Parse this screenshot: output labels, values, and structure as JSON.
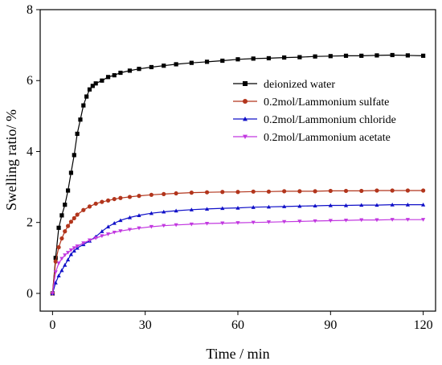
{
  "chart_data": {
    "type": "line",
    "title": "",
    "xlabel": "Time / min",
    "ylabel": "Swelling ratio/ %",
    "xlim": [
      -4,
      124
    ],
    "ylim": [
      -0.5,
      8
    ],
    "xticks": [
      0,
      30,
      60,
      90,
      120
    ],
    "yticks": [
      0,
      2,
      4,
      6,
      8
    ],
    "x_tick_labels": [
      "0",
      "30",
      "60",
      "90",
      "120"
    ],
    "y_tick_labels": [
      "0",
      "2",
      "4",
      "6",
      "8"
    ],
    "grid": false,
    "legend_position": "upper-right",
    "series": [
      {
        "name": "deionized water",
        "color": "#000000",
        "marker": "square",
        "x": [
          0,
          1,
          2,
          3,
          4,
          5,
          6,
          7,
          8,
          9,
          10,
          11,
          12,
          13,
          14,
          16,
          18,
          20,
          22,
          25,
          28,
          32,
          36,
          40,
          45,
          50,
          55,
          60,
          65,
          70,
          75,
          80,
          85,
          90,
          95,
          100,
          105,
          110,
          115,
          120
        ],
        "y": [
          0,
          1.0,
          1.85,
          2.2,
          2.5,
          2.9,
          3.4,
          3.9,
          4.5,
          4.9,
          5.3,
          5.55,
          5.75,
          5.85,
          5.92,
          6.0,
          6.1,
          6.15,
          6.22,
          6.28,
          6.33,
          6.38,
          6.42,
          6.46,
          6.5,
          6.53,
          6.56,
          6.6,
          6.62,
          6.63,
          6.65,
          6.66,
          6.68,
          6.69,
          6.7,
          6.7,
          6.71,
          6.72,
          6.71,
          6.7
        ]
      },
      {
        "name": "0.2mol/Lammonium sulfate",
        "color": "#b2351c",
        "marker": "circle",
        "x": [
          0,
          1,
          2,
          3,
          4,
          5,
          6,
          7,
          8,
          10,
          12,
          14,
          16,
          18,
          20,
          22,
          25,
          28,
          32,
          36,
          40,
          45,
          50,
          55,
          60,
          65,
          70,
          75,
          80,
          85,
          90,
          95,
          100,
          105,
          110,
          115,
          120
        ],
        "y": [
          0,
          0.9,
          1.3,
          1.55,
          1.75,
          1.9,
          2.02,
          2.12,
          2.22,
          2.35,
          2.45,
          2.53,
          2.58,
          2.62,
          2.66,
          2.69,
          2.72,
          2.75,
          2.78,
          2.8,
          2.82,
          2.84,
          2.85,
          2.86,
          2.86,
          2.87,
          2.87,
          2.88,
          2.88,
          2.88,
          2.89,
          2.89,
          2.89,
          2.9,
          2.9,
          2.9,
          2.9
        ]
      },
      {
        "name": "0.2mol/Lammonium chloride",
        "color": "#1010c8",
        "marker": "triangle-up",
        "x": [
          0,
          1,
          2,
          3,
          4,
          5,
          6,
          7,
          8,
          10,
          12,
          14,
          16,
          18,
          20,
          22,
          25,
          28,
          32,
          36,
          40,
          45,
          50,
          55,
          60,
          65,
          70,
          75,
          80,
          85,
          90,
          95,
          100,
          105,
          110,
          115,
          120
        ],
        "y": [
          0,
          0.3,
          0.5,
          0.65,
          0.8,
          0.95,
          1.1,
          1.2,
          1.28,
          1.38,
          1.48,
          1.6,
          1.75,
          1.88,
          1.98,
          2.06,
          2.14,
          2.2,
          2.26,
          2.3,
          2.33,
          2.36,
          2.38,
          2.4,
          2.41,
          2.43,
          2.44,
          2.45,
          2.46,
          2.47,
          2.48,
          2.48,
          2.49,
          2.49,
          2.5,
          2.5,
          2.5
        ]
      },
      {
        "name": "0.2mol/Lammonium acetate",
        "color": "#c238e0",
        "marker": "triangle-down",
        "x": [
          0,
          1,
          2,
          3,
          4,
          5,
          6,
          7,
          8,
          10,
          12,
          14,
          16,
          18,
          20,
          22,
          25,
          28,
          32,
          36,
          40,
          45,
          50,
          55,
          60,
          65,
          70,
          75,
          80,
          85,
          90,
          95,
          100,
          105,
          110,
          115,
          120
        ],
        "y": [
          0,
          0.6,
          0.85,
          0.98,
          1.08,
          1.15,
          1.22,
          1.28,
          1.33,
          1.42,
          1.5,
          1.56,
          1.62,
          1.67,
          1.72,
          1.76,
          1.8,
          1.84,
          1.88,
          1.91,
          1.93,
          1.95,
          1.97,
          1.98,
          1.99,
          2.0,
          2.01,
          2.02,
          2.03,
          2.04,
          2.05,
          2.06,
          2.07,
          2.07,
          2.08,
          2.08,
          2.08
        ]
      }
    ]
  }
}
